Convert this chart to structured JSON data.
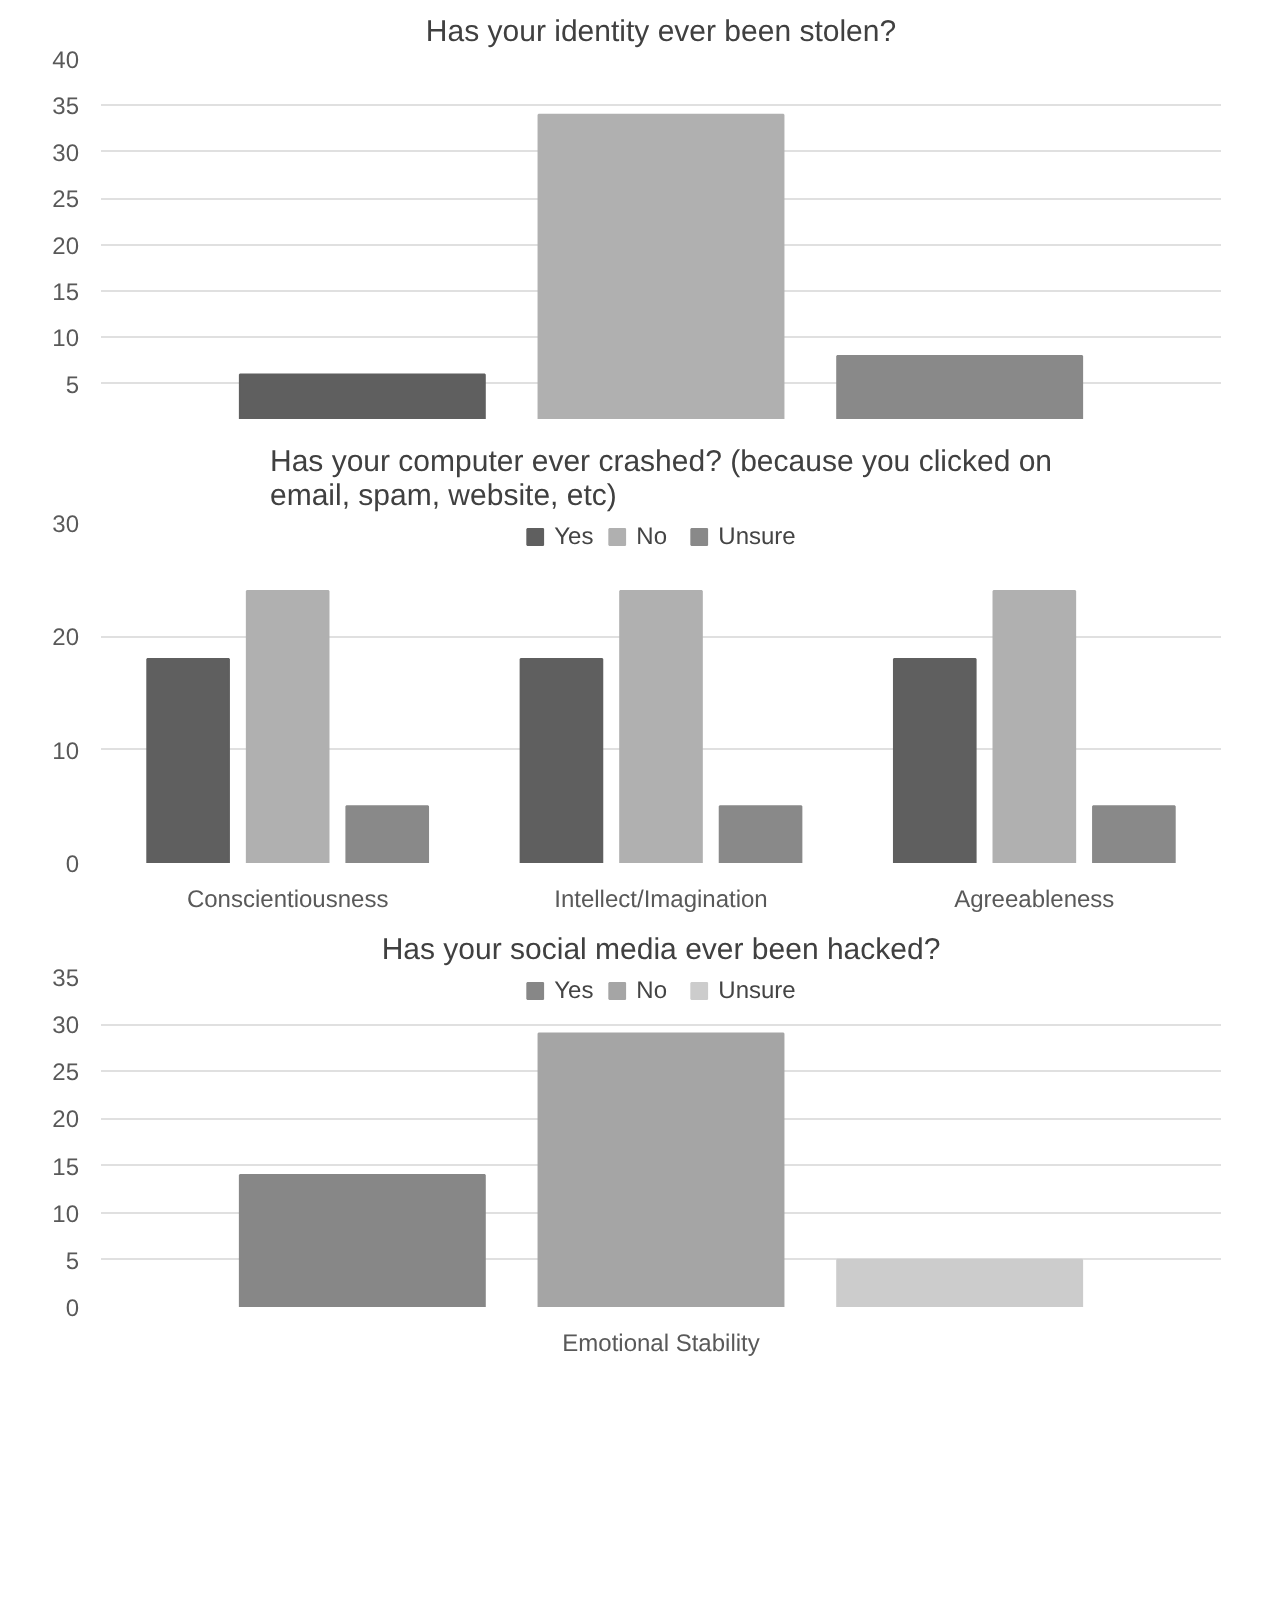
{
  "chart_data": [
    {
      "type": "bar",
      "title": "Has your identity ever been stolen?",
      "categories": [
        null
      ],
      "ylim": [
        1.2,
        40
      ],
      "yticks": [
        5,
        10,
        15,
        20,
        25,
        30,
        35,
        40
      ],
      "grid": "y",
      "series": [
        {
          "color": "#5f5f5f",
          "values": [
            6
          ]
        },
        {
          "color": "#b0b0b0",
          "values": [
            34
          ]
        },
        {
          "color": "#898989",
          "values": [
            8
          ]
        }
      ]
    },
    {
      "type": "bar",
      "title": "Has your computer ever crashed? (because you clicked on email, spam, website, etc)",
      "categories": [
        "Conscientiousness",
        "Intellect/Imagination",
        "Agreeableness"
      ],
      "ylim": [
        0,
        30
      ],
      "yticks": [
        0,
        10,
        20,
        30
      ],
      "grid": "y",
      "legend": "top",
      "series": [
        {
          "name": "Yes",
          "color": "#5f5f5f",
          "values": [
            18,
            18,
            18
          ]
        },
        {
          "name": "No",
          "color": "#b0b0b0",
          "values": [
            24,
            24,
            24
          ]
        },
        {
          "name": "Unsure",
          "color": "#898989",
          "values": [
            5,
            5,
            5
          ]
        }
      ]
    },
    {
      "type": "bar",
      "title": "Has your social media ever been hacked?",
      "categories": [
        "Emotional Stability"
      ],
      "ylim": [
        0,
        35
      ],
      "yticks": [
        0,
        5,
        10,
        15,
        20,
        25,
        30,
        35
      ],
      "grid": "y",
      "legend": "top",
      "series": [
        {
          "name": "Yes",
          "color": "#878787",
          "values": [
            14
          ]
        },
        {
          "name": "No",
          "color": "#a5a5a5",
          "values": [
            29
          ]
        },
        {
          "name": "Unsure",
          "color": "#cccccc",
          "values": [
            5
          ]
        }
      ]
    }
  ]
}
